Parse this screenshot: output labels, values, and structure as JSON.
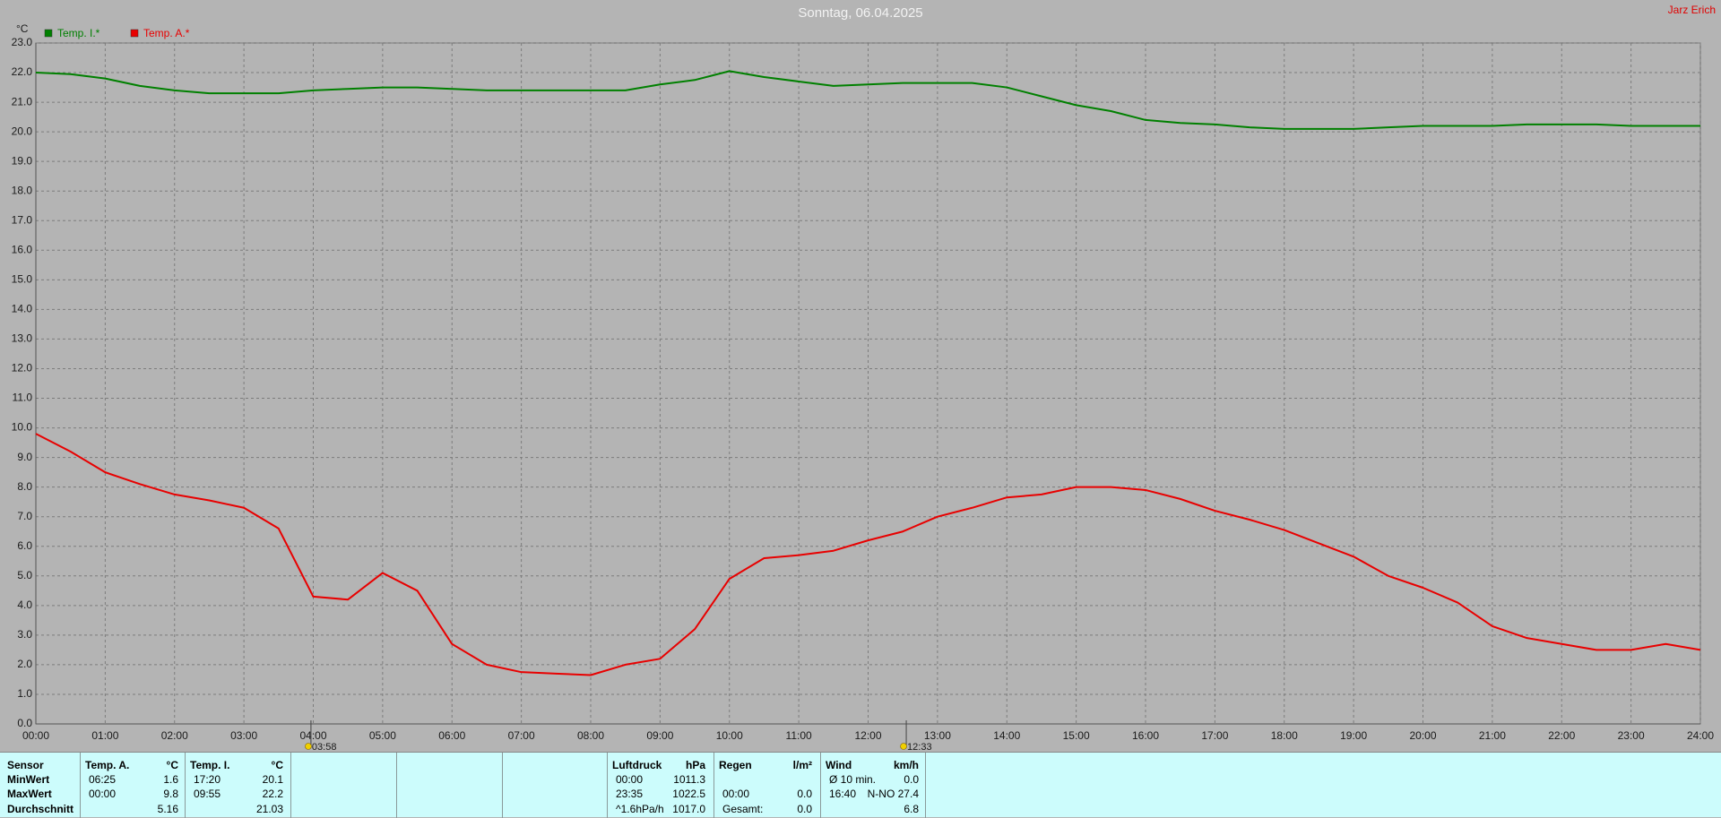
{
  "header": {
    "owner": "Jarz Erich"
  },
  "chart_data": {
    "type": "line",
    "title": "Sonntag, 06.04.2025",
    "y_label": "°C",
    "x": [
      0,
      0.5,
      1,
      1.5,
      2,
      2.5,
      3,
      3.5,
      4,
      4.5,
      5,
      5.5,
      6,
      6.5,
      7,
      7.5,
      8,
      8.5,
      9,
      9.5,
      10,
      10.5,
      11,
      11.5,
      12,
      12.5,
      13,
      13.5,
      14,
      14.5,
      15,
      15.5,
      16,
      16.5,
      17,
      17.5,
      18,
      18.5,
      19,
      19.5,
      20,
      20.5,
      21,
      21.5,
      22,
      22.5,
      23,
      23.5,
      24
    ],
    "series": [
      {
        "name": "Temp. I.*",
        "color": "#008000",
        "values": [
          22.0,
          21.95,
          21.8,
          21.55,
          21.4,
          21.3,
          21.3,
          21.3,
          21.4,
          21.45,
          21.5,
          21.5,
          21.45,
          21.4,
          21.4,
          21.4,
          21.4,
          21.4,
          21.6,
          21.75,
          22.05,
          21.85,
          21.7,
          21.55,
          21.6,
          21.65,
          21.65,
          21.65,
          21.5,
          21.2,
          20.9,
          20.7,
          20.4,
          20.3,
          20.25,
          20.15,
          20.1,
          20.1,
          20.1,
          20.15,
          20.2,
          20.2,
          20.2,
          20.25,
          20.25,
          20.25,
          20.2,
          20.2,
          20.2
        ]
      },
      {
        "name": "Temp. A.*",
        "color": "#e80000",
        "values": [
          9.8,
          9.2,
          8.5,
          8.1,
          7.75,
          7.55,
          7.3,
          6.6,
          4.3,
          4.2,
          5.1,
          4.5,
          2.7,
          2.0,
          1.75,
          1.7,
          1.65,
          2.0,
          2.2,
          3.2,
          4.9,
          5.6,
          5.7,
          5.85,
          6.2,
          6.5,
          7.0,
          7.3,
          7.65,
          7.75,
          8.0,
          8.0,
          7.9,
          7.6,
          7.2,
          6.9,
          6.55,
          6.1,
          5.65,
          5.0,
          4.6,
          4.1,
          3.3,
          2.9,
          2.7,
          2.5,
          2.5,
          2.7,
          2.5
        ]
      }
    ],
    "xlim": [
      0,
      24
    ],
    "xticks": [
      {
        "value": 0,
        "label": "00:00"
      },
      {
        "value": 1,
        "label": "01:00"
      },
      {
        "value": 2,
        "label": "02:00"
      },
      {
        "value": 3,
        "label": "03:00"
      },
      {
        "value": 4,
        "label": "04:00"
      },
      {
        "value": 5,
        "label": "05:00"
      },
      {
        "value": 6,
        "label": "06:00"
      },
      {
        "value": 7,
        "label": "07:00"
      },
      {
        "value": 8,
        "label": "08:00"
      },
      {
        "value": 9,
        "label": "09:00"
      },
      {
        "value": 10,
        "label": "10:00"
      },
      {
        "value": 11,
        "label": "11:00"
      },
      {
        "value": 12,
        "label": "12:00"
      },
      {
        "value": 13,
        "label": "13:00"
      },
      {
        "value": 14,
        "label": "14:00"
      },
      {
        "value": 15,
        "label": "15:00"
      },
      {
        "value": 16,
        "label": "16:00"
      },
      {
        "value": 17,
        "label": "17:00"
      },
      {
        "value": 18,
        "label": "18:00"
      },
      {
        "value": 19,
        "label": "19:00"
      },
      {
        "value": 20,
        "label": "20:00"
      },
      {
        "value": 21,
        "label": "21:00"
      },
      {
        "value": 22,
        "label": "22:00"
      },
      {
        "value": 23,
        "label": "23:00"
      },
      {
        "value": 24,
        "label": "24:00"
      }
    ],
    "ylim": [
      0,
      23
    ],
    "yticks": [
      {
        "value": 0,
        "label": "0.0"
      },
      {
        "value": 1,
        "label": "1.0"
      },
      {
        "value": 2,
        "label": "2.0"
      },
      {
        "value": 3,
        "label": "3.0"
      },
      {
        "value": 4,
        "label": "4.0"
      },
      {
        "value": 5,
        "label": "5.0"
      },
      {
        "value": 6,
        "label": "6.0"
      },
      {
        "value": 7,
        "label": "7.0"
      },
      {
        "value": 8,
        "label": "8.0"
      },
      {
        "value": 9,
        "label": "9.0"
      },
      {
        "value": 10,
        "label": "10.0"
      },
      {
        "value": 11,
        "label": "11.0"
      },
      {
        "value": 12,
        "label": "12.0"
      },
      {
        "value": 13,
        "label": "13.0"
      },
      {
        "value": 14,
        "label": "14.0"
      },
      {
        "value": 15,
        "label": "15.0"
      },
      {
        "value": 16,
        "label": "16.0"
      },
      {
        "value": 17,
        "label": "17.0"
      },
      {
        "value": 18,
        "label": "18.0"
      },
      {
        "value": 19,
        "label": "19.0"
      },
      {
        "value": 20,
        "label": "20.0"
      },
      {
        "value": 21,
        "label": "21.0"
      },
      {
        "value": 22,
        "label": "22.0"
      },
      {
        "value": 23,
        "label": "23.0"
      }
    ],
    "grid": true,
    "legend": "top-left",
    "annotations": [
      {
        "label": "03:58"
      },
      {
        "label": "12:33"
      }
    ]
  },
  "summary": {
    "row_labels": [
      "Sensor",
      "MinWert",
      "MaxWert",
      "Durchschnitt"
    ],
    "columns": [
      {
        "header": [
          "Temp. A.",
          "°C"
        ],
        "rows": [
          [
            "06:25",
            "1.6"
          ],
          [
            "00:00",
            "9.8"
          ],
          [
            null,
            "5.16"
          ]
        ]
      },
      {
        "header": [
          "Temp. I.",
          "°C"
        ],
        "rows": [
          [
            "17:20",
            "20.1"
          ],
          [
            "09:55",
            "22.2"
          ],
          [
            null,
            "21.03"
          ]
        ]
      },
      {
        "header": [
          "Luftdruck",
          "hPa"
        ],
        "rows": [
          [
            "00:00",
            "1011.3"
          ],
          [
            "23:35",
            "1022.5"
          ],
          [
            "^1.6hPa/h",
            "1017.0"
          ]
        ]
      },
      {
        "header": [
          "Regen",
          "l/m²"
        ],
        "rows": [
          [
            null,
            null
          ],
          [
            "00:00",
            "0.0"
          ],
          [
            "Gesamt:",
            "0.0"
          ]
        ]
      },
      {
        "header": [
          "Wind",
          "km/h"
        ],
        "rows": [
          [
            "Ø 10 min.",
            "0.0"
          ],
          [
            "16:40",
            "N-NO 27.4"
          ],
          [
            null,
            "6.8"
          ]
        ]
      }
    ]
  }
}
